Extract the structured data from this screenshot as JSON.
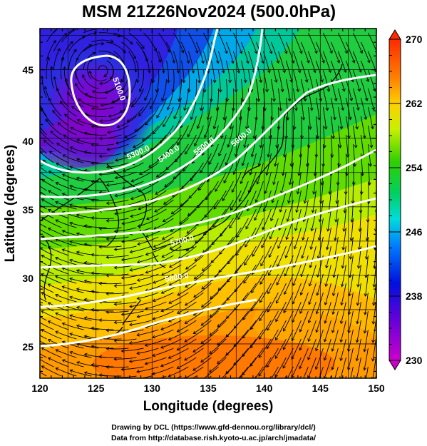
{
  "title": "MSM 21Z26Nov2024 (500.0hPa)",
  "xlabel": "Longitude (degrees)",
  "ylabel": "Latitude  (degrees)",
  "x_ticks": [
    "120",
    "125",
    "130",
    "135",
    "140",
    "145",
    "150"
  ],
  "y_ticks": [
    "25",
    "30",
    "35",
    "40",
    "45"
  ],
  "colorbar_ticks": [
    "270",
    "262",
    "254",
    "246",
    "238",
    "230"
  ],
  "contour_labels": [
    "5100.0",
    "5300.0",
    "5400.0",
    "5500.0",
    "5600.0",
    "5700.0",
    "5800.0"
  ],
  "credit_line1": "Drawing by DCL (https://www.gfd-dennou.org/library/dcl/)",
  "credit_line2": "Data from http://database.rish.kyoto-u.ac.jp/arch/jmadata/",
  "colors": {
    "contour": "#ffffff",
    "streamline": "#000000",
    "coastline": "#000000",
    "grid": "#000000"
  },
  "chart_data": {
    "type": "heatmap",
    "field": "temperature-like scalar shaded with geopotential height contours and wind streamlines",
    "xlim": [
      120,
      150
    ],
    "ylim": [
      22.5,
      48
    ],
    "colorbar_range": [
      230,
      270
    ],
    "colorbar_ticks": [
      270,
      262,
      254,
      246,
      238,
      230
    ],
    "grid": true,
    "contours": [
      {
        "label": "5100.0",
        "shape": "closed low centered near 125.5E 45N"
      },
      {
        "label": "5300.0",
        "shape": "arc around low, passes 130E 40N"
      },
      {
        "label": "5400.0",
        "shape": "passes 131E 41N"
      },
      {
        "label": "5500.0",
        "shape": "passes 137E 40N"
      },
      {
        "label": "5600.0",
        "shape": "passes 133E 33N"
      },
      {
        "label": "5700.0",
        "shape": "passes 132E 30N"
      },
      {
        "label": "5800.0",
        "shape": "passes 131E 27N"
      }
    ],
    "features": {
      "cold_low_center": [
        125.5,
        45
      ],
      "coldest_region": [
        124,
        41
      ],
      "warmest_region": [
        140,
        24
      ]
    }
  }
}
